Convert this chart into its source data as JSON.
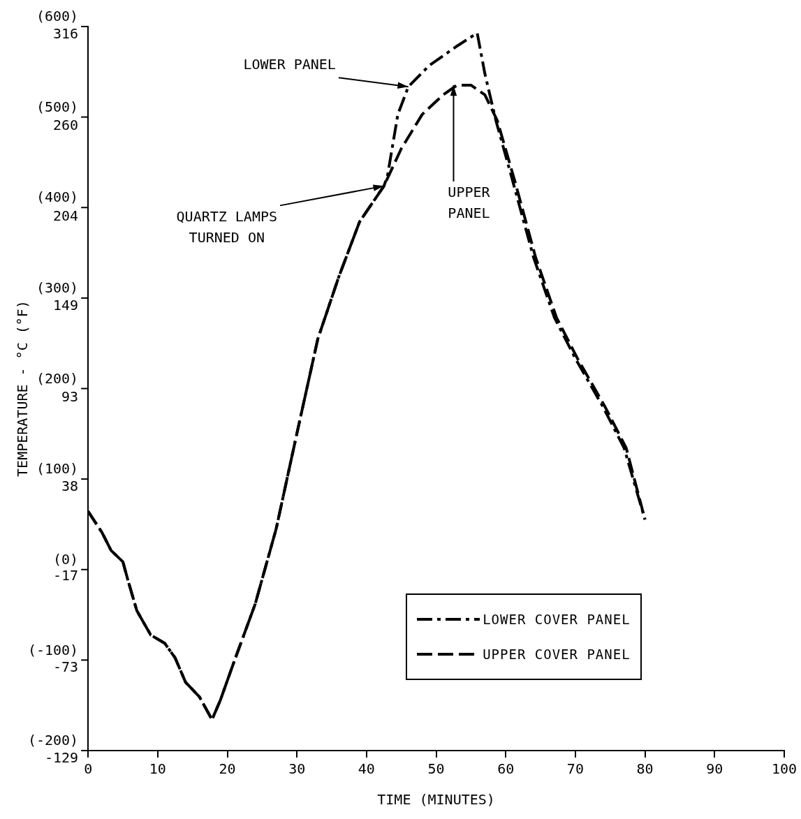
{
  "chart_data": {
    "type": "line",
    "xlabel": "TIME (MINUTES)",
    "y2label": "TEMPERATURE - °C (°F)",
    "xlim": [
      0,
      100
    ],
    "xticks": [
      0,
      10,
      20,
      30,
      40,
      50,
      60,
      70,
      80,
      90,
      100
    ],
    "ylim": [
      -129,
      316
    ],
    "yticks": [
      -129,
      -73,
      -17,
      38,
      93,
      149,
      204,
      260,
      316
    ],
    "y2lim": [
      -200,
      600
    ],
    "y2ticks": [
      {
        "value": -200,
        "label": "(-200)"
      },
      {
        "value": -100,
        "label": "(-100)"
      },
      {
        "value": 0,
        "label": "(0)"
      },
      {
        "value": 100,
        "label": "(100)"
      },
      {
        "value": 200,
        "label": "(200)"
      },
      {
        "value": 300,
        "label": "(300)"
      },
      {
        "value": 400,
        "label": "(400)"
      },
      {
        "value": 500,
        "label": "(500)"
      },
      {
        "value": 600,
        "label": "(600)"
      }
    ],
    "grid": false,
    "legend": "bottom right",
    "series": [
      {
        "name": "LOWER COVER PANEL",
        "color": "#000000",
        "line_style": "dashdot",
        "x": [
          0,
          2,
          3.3,
          5,
          5.7,
          7,
          9,
          11,
          12.5,
          14,
          16,
          17.8,
          19,
          21,
          24,
          27,
          30,
          33,
          36,
          39,
          42.5,
          43,
          44.5,
          46,
          49,
          53,
          55.9,
          57,
          58.6,
          61,
          64,
          67,
          70,
          74,
          77,
          80
        ],
        "values": [
          18,
          5,
          -6,
          -13,
          -24,
          -43,
          -58,
          -63,
          -72,
          -87,
          -96,
          -110,
          -98,
          -74,
          -39,
          7,
          66,
          124,
          162,
          196,
          218,
          224,
          262,
          279,
          292,
          304,
          312,
          287,
          258,
          221,
          174,
          137,
          112,
          82,
          57,
          13
        ]
      },
      {
        "name": "UPPER COVER PANEL",
        "color": "#000000",
        "line_style": "dashed",
        "x": [
          0,
          2,
          3.3,
          5,
          5.7,
          7,
          9,
          11,
          12.5,
          14,
          16,
          17.8,
          19,
          21,
          24,
          27,
          30,
          33,
          36,
          39,
          42.5,
          45,
          48,
          51,
          53,
          55,
          57,
          58.8,
          61.3,
          64.3,
          67.3,
          70.3,
          74.3,
          77.3,
          80
        ],
        "values": [
          18,
          5,
          -6,
          -13,
          -24,
          -43,
          -58,
          -63,
          -72,
          -87,
          -96,
          -110,
          -98,
          -74,
          -39,
          7,
          66,
          124,
          162,
          196,
          218,
          241,
          262,
          274,
          280,
          280,
          274,
          258,
          221,
          174,
          137,
          112,
          82,
          57,
          13
        ]
      }
    ],
    "annotations": [
      {
        "text": "LOWER PANEL",
        "x": 46,
        "y": 279
      },
      {
        "text": "UPPER\nPANEL",
        "x": 52.5,
        "y": 280
      },
      {
        "text": "QUARTZ LAMPS\nTURNED ON",
        "x": 42.5,
        "y": 218
      }
    ]
  }
}
